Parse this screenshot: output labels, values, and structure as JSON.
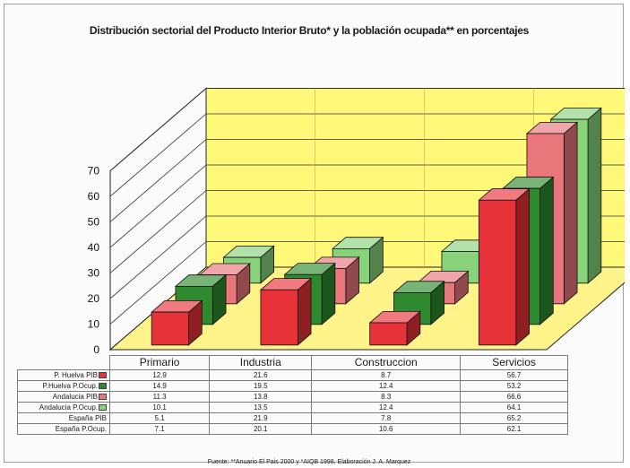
{
  "chart_data": {
    "type": "bar",
    "title": "Distribución sectorial del Producto Interior Bruto* y la población ocupada** en porcentajes",
    "categories": [
      "Primario",
      "Industria",
      "Construccion",
      "Servicios"
    ],
    "ylim": [
      0,
      70
    ],
    "yticks": [
      "0",
      "10",
      "20",
      "30",
      "40",
      "50",
      "60",
      "70"
    ],
    "grid": true,
    "series": [
      {
        "name": "P. Huelva PIB",
        "values": [
          "12.9",
          "21.6",
          "8.7",
          "56.7"
        ],
        "color": "#e8323a",
        "plotted": true
      },
      {
        "name": "P.Huelva P.Ocup.",
        "values": [
          "14.9",
          "19.5",
          "12.4",
          "53.2"
        ],
        "color": "#2f8a2f",
        "plotted": true
      },
      {
        "name": "Andalucia PIB",
        "values": [
          "11.3",
          "13.8",
          "8.3",
          "66.6"
        ],
        "color": "#e8767a",
        "plotted": true
      },
      {
        "name": "Andalucia P.Ocup.",
        "values": [
          "10.1",
          "13.5",
          "12.4",
          "64.1"
        ],
        "color": "#88d27a",
        "plotted": true
      },
      {
        "name": "España PIB",
        "values": [
          "5.1",
          "21.9",
          "7.8",
          "65.2"
        ],
        "plotted": false
      },
      {
        "name": "España P.Ocup.",
        "values": [
          "7.1",
          "20.1",
          "10.6",
          "62.1"
        ],
        "plotted": false
      }
    ],
    "source": "Fuente: **Anuario El Pais 2000  y *AIQB 1998, Elaboración J. A. Marquez",
    "colors": {
      "wall": "#fff878",
      "floor": "#fff48a",
      "gridline": "#333333"
    }
  }
}
